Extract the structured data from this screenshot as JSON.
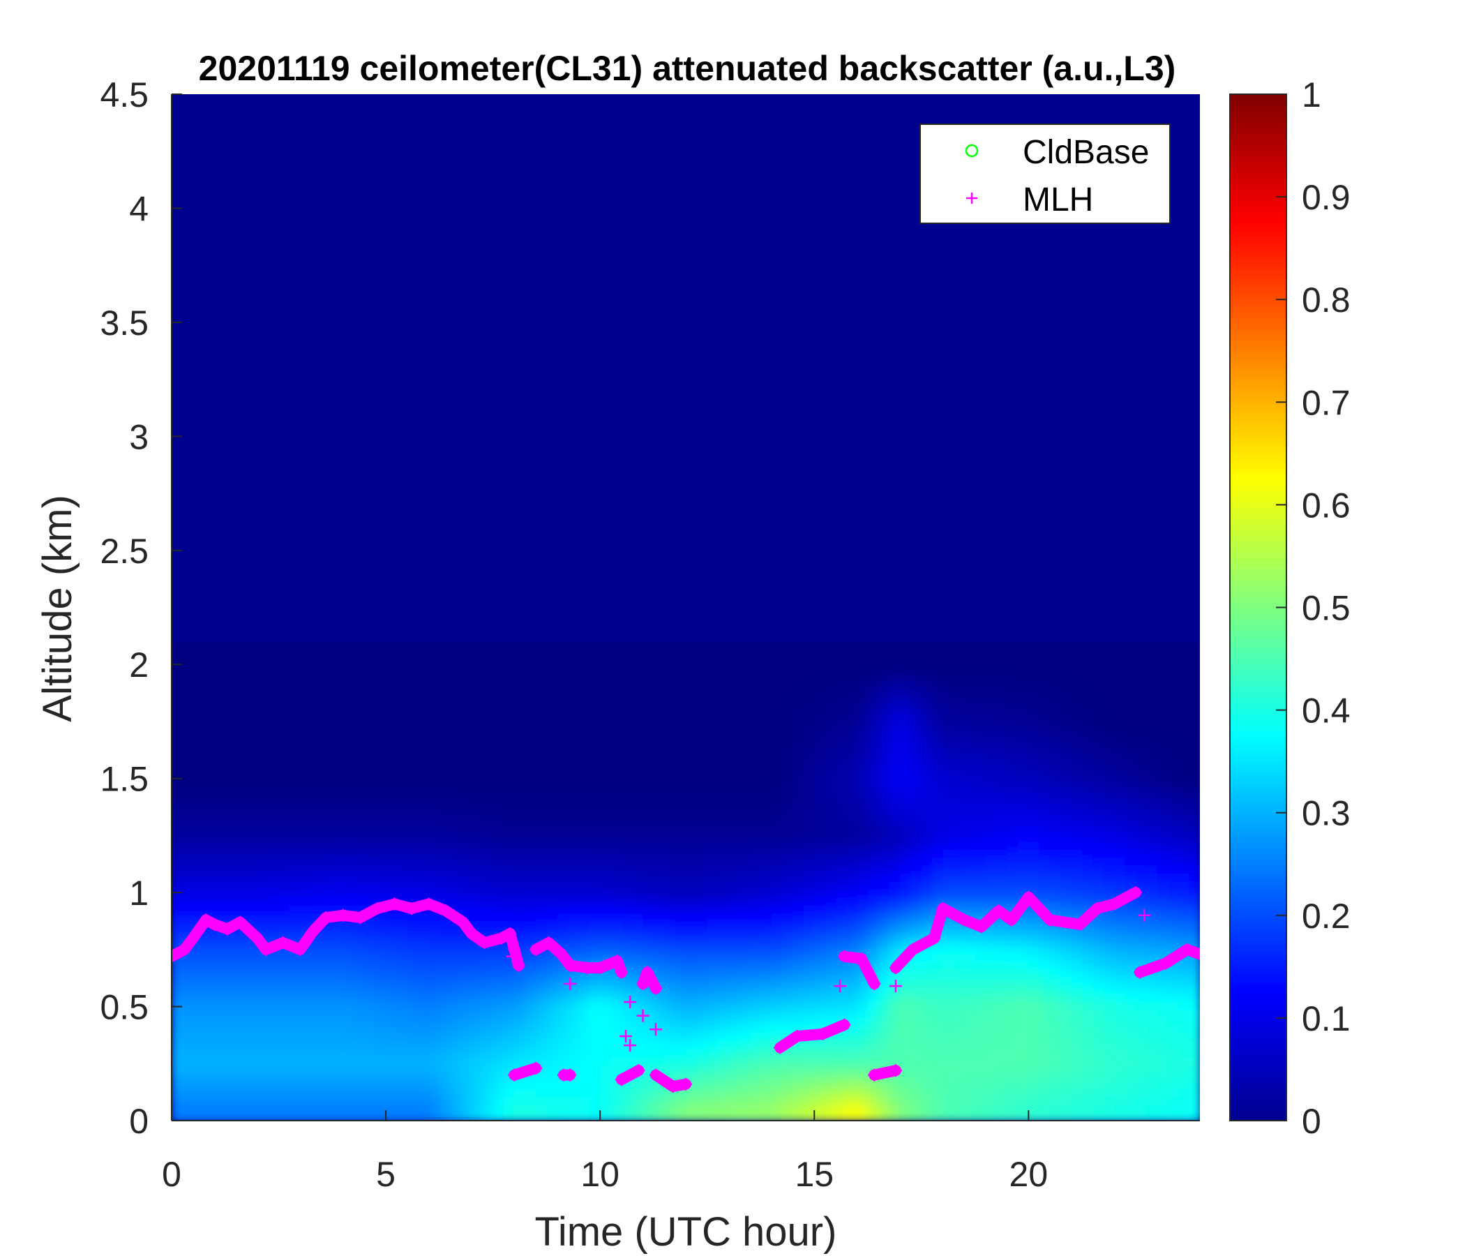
{
  "chart_data": {
    "type": "heatmap",
    "title": "20201119 ceilometer(CL31) attenuated backscatter (a.u.,L3)",
    "xlabel": "Time (UTC hour)",
    "ylabel": "Altitude (km)",
    "xlim": [
      0,
      24
    ],
    "ylim": [
      0,
      4.5
    ],
    "x_ticks": [
      "0",
      "5",
      "10",
      "15",
      "20"
    ],
    "y_ticks": [
      "0",
      "0.5",
      "1",
      "1.5",
      "2",
      "2.5",
      "3",
      "3.5",
      "4",
      "4.5"
    ],
    "colorbar": {
      "colormap": "jet",
      "clim": [
        0,
        1
      ],
      "ticks": [
        "0",
        "0.1",
        "0.2",
        "0.3",
        "0.4",
        "0.5",
        "0.6",
        "0.7",
        "0.8",
        "0.9",
        "1"
      ]
    },
    "legend": {
      "placement": "top-right",
      "entries": [
        {
          "label": "CldBase",
          "marker": "circle",
          "color": "#00ff00"
        },
        {
          "label": "MLH",
          "marker": "plus",
          "color": "#ff00ff"
        }
      ]
    },
    "backscatter": {
      "times": [
        0,
        2,
        4,
        6,
        8,
        10,
        12,
        14,
        16,
        17,
        18,
        20,
        22,
        24
      ],
      "altitudes": [
        0.05,
        0.25,
        0.5,
        0.75,
        1.0,
        1.25,
        1.5,
        1.75,
        2.0
      ],
      "values": [
        [
          0.25,
          0.3,
          0.27,
          0.2,
          0.1,
          0.03,
          0.0,
          0.0,
          0.0
        ],
        [
          0.25,
          0.3,
          0.27,
          0.2,
          0.1,
          0.03,
          0.0,
          0.0,
          0.0
        ],
        [
          0.25,
          0.3,
          0.27,
          0.2,
          0.11,
          0.03,
          0.0,
          0.0,
          0.0
        ],
        [
          0.25,
          0.3,
          0.25,
          0.18,
          0.1,
          0.03,
          0.0,
          0.0,
          0.0
        ],
        [
          0.4,
          0.35,
          0.28,
          0.18,
          0.08,
          0.02,
          0.0,
          0.0,
          0.0
        ],
        [
          0.38,
          0.38,
          0.38,
          0.22,
          0.08,
          0.02,
          0.0,
          0.0,
          0.0
        ],
        [
          0.5,
          0.4,
          0.3,
          0.2,
          0.06,
          0.02,
          0.0,
          0.0,
          0.0
        ],
        [
          0.52,
          0.45,
          0.33,
          0.2,
          0.08,
          0.02,
          0.0,
          0.0,
          0.0
        ],
        [
          0.62,
          0.45,
          0.35,
          0.25,
          0.12,
          0.03,
          0.05,
          0.02,
          0.0
        ],
        [
          0.5,
          0.45,
          0.45,
          0.35,
          0.15,
          0.06,
          0.12,
          0.1,
          0.0
        ],
        [
          0.45,
          0.45,
          0.43,
          0.38,
          0.2,
          0.1,
          0.08,
          0.03,
          0.0
        ],
        [
          0.42,
          0.45,
          0.45,
          0.36,
          0.2,
          0.12,
          0.06,
          0.02,
          0.0
        ],
        [
          0.4,
          0.42,
          0.4,
          0.3,
          0.18,
          0.1,
          0.03,
          0.0,
          0.0
        ],
        [
          0.38,
          0.4,
          0.38,
          0.28,
          0.15,
          0.06,
          0.0,
          0.0,
          0.0
        ]
      ]
    },
    "series": [
      {
        "name": "MLH",
        "segments": [
          [
            [
              0,
              0.72
            ],
            [
              0.3,
              0.75
            ],
            [
              0.5,
              0.8
            ],
            [
              0.8,
              0.88
            ],
            [
              1.0,
              0.86
            ],
            [
              1.3,
              0.84
            ],
            [
              1.6,
              0.87
            ],
            [
              2.0,
              0.8
            ],
            [
              2.2,
              0.75
            ],
            [
              2.6,
              0.78
            ],
            [
              3.0,
              0.75
            ],
            [
              3.3,
              0.83
            ],
            [
              3.6,
              0.89
            ],
            [
              4.0,
              0.9
            ],
            [
              4.4,
              0.89
            ],
            [
              4.8,
              0.93
            ],
            [
              5.2,
              0.95
            ],
            [
              5.6,
              0.93
            ],
            [
              6.0,
              0.95
            ],
            [
              6.4,
              0.92
            ],
            [
              6.8,
              0.87
            ],
            [
              7.0,
              0.82
            ],
            [
              7.3,
              0.78
            ],
            [
              7.7,
              0.8
            ],
            [
              7.9,
              0.82
            ],
            [
              8.0,
              0.75
            ],
            [
              8.1,
              0.68
            ]
          ],
          [
            [
              8.5,
              0.75
            ],
            [
              8.8,
              0.78
            ],
            [
              9.1,
              0.73
            ],
            [
              9.3,
              0.68
            ],
            [
              9.7,
              0.67
            ],
            [
              10.0,
              0.67
            ],
            [
              10.4,
              0.7
            ],
            [
              10.5,
              0.65
            ]
          ],
          [
            [
              11.0,
              0.6
            ],
            [
              11.1,
              0.65
            ],
            [
              11.3,
              0.58
            ]
          ],
          [
            [
              8.0,
              0.2
            ],
            [
              8.5,
              0.23
            ]
          ],
          [
            [
              9.15,
              0.2
            ],
            [
              9.3,
              0.2
            ]
          ],
          [
            [
              10.5,
              0.18
            ],
            [
              10.9,
              0.22
            ]
          ],
          [
            [
              11.3,
              0.2
            ],
            [
              11.7,
              0.15
            ],
            [
              12.0,
              0.16
            ]
          ],
          [
            [
              14.2,
              0.32
            ],
            [
              14.6,
              0.37
            ],
            [
              15.2,
              0.38
            ],
            [
              15.7,
              0.42
            ]
          ],
          [
            [
              15.7,
              0.72
            ],
            [
              16.1,
              0.71
            ],
            [
              16.4,
              0.6
            ]
          ],
          [
            [
              16.4,
              0.2
            ],
            [
              16.9,
              0.22
            ]
          ],
          [
            [
              16.9,
              0.67
            ],
            [
              17.3,
              0.75
            ],
            [
              17.8,
              0.8
            ],
            [
              18.0,
              0.93
            ],
            [
              18.5,
              0.88
            ],
            [
              18.9,
              0.85
            ],
            [
              19.3,
              0.92
            ],
            [
              19.6,
              0.88
            ],
            [
              20.0,
              0.98
            ],
            [
              20.5,
              0.88
            ],
            [
              21.2,
              0.86
            ],
            [
              21.6,
              0.93
            ],
            [
              22.0,
              0.95
            ],
            [
              22.5,
              1.0
            ]
          ],
          [
            [
              22.6,
              0.65
            ],
            [
              23.2,
              0.69
            ],
            [
              23.7,
              0.75
            ],
            [
              24.0,
              0.73
            ]
          ]
        ],
        "isolated": [
          [
            9.3,
            0.6
          ],
          [
            10.6,
            0.37
          ],
          [
            10.7,
            0.33
          ],
          [
            10.7,
            0.52
          ],
          [
            11.0,
            0.46
          ],
          [
            11.3,
            0.4
          ],
          [
            15.6,
            0.59
          ],
          [
            16.9,
            0.59
          ],
          [
            22.7,
            0.9
          ],
          [
            7.95,
            0.72
          ]
        ]
      },
      {
        "name": "CldBase",
        "points": []
      }
    ]
  }
}
